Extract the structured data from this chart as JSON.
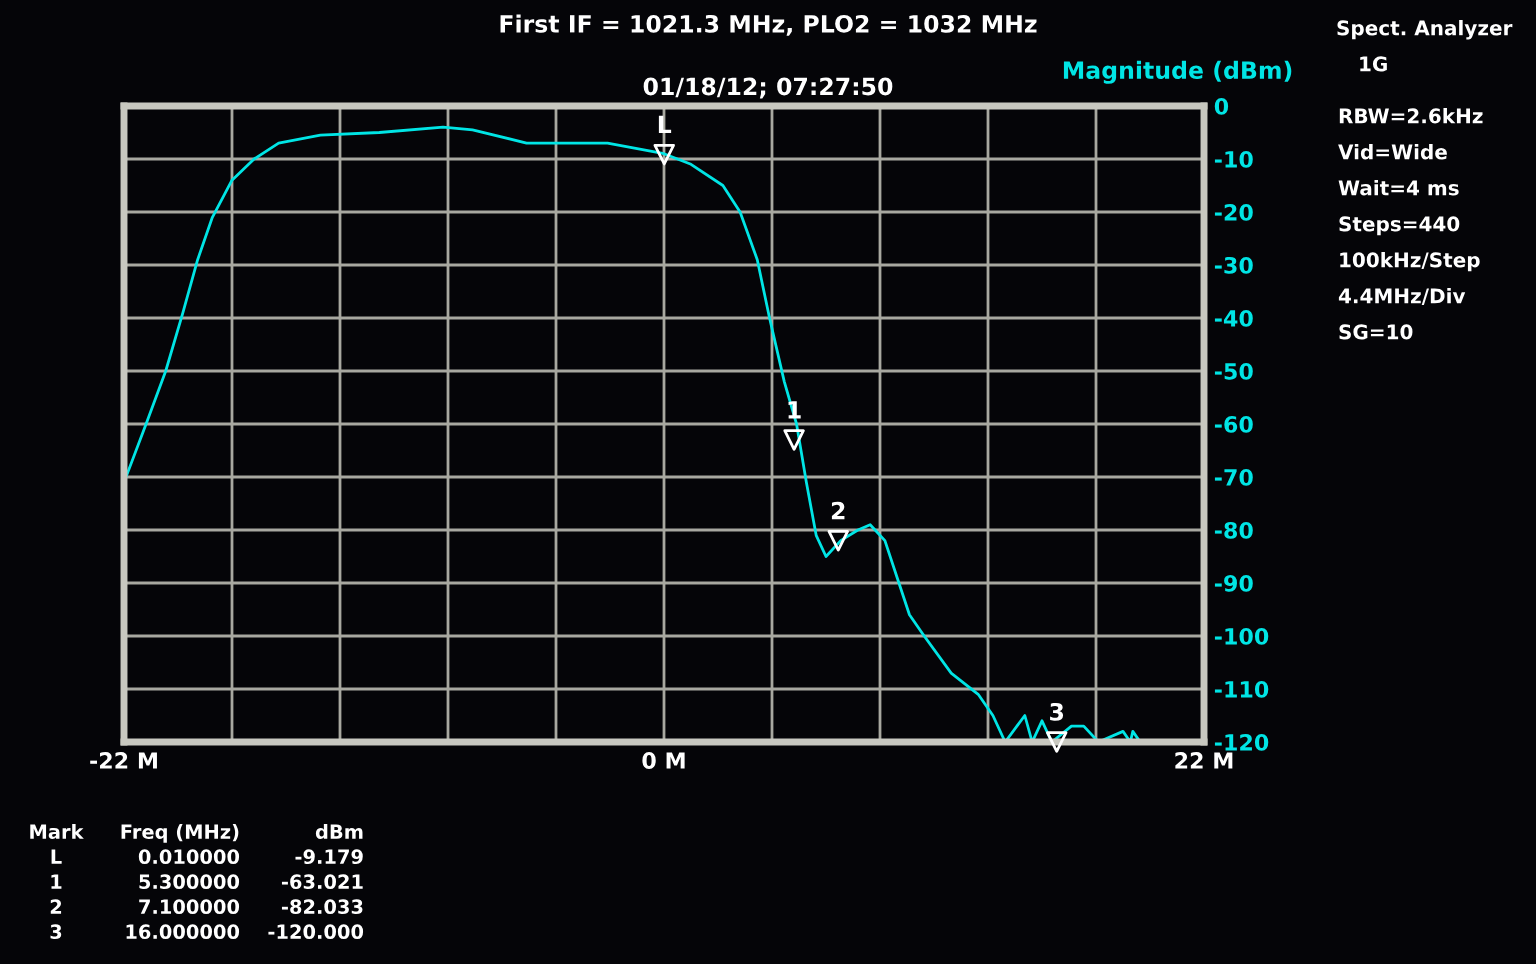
{
  "chart_data": {
    "type": "line",
    "title": "First IF = 1021.3 MHz, PLO2 = 1032 MHz",
    "subtitle": "01/18/12; 07:27:50",
    "ylabel": "Magnitude (dBm)",
    "xlim": [
      -22,
      22
    ],
    "ylim": [
      -120,
      0
    ],
    "xticks": [
      {
        "value": -22,
        "label": "-22 M"
      },
      {
        "value": -17.6,
        "label": null
      },
      {
        "value": -13.2,
        "label": null
      },
      {
        "value": -8.8,
        "label": null
      },
      {
        "value": -4.4,
        "label": null
      },
      {
        "value": 0,
        "label": "0 M"
      },
      {
        "value": 4.4,
        "label": null
      },
      {
        "value": 8.8,
        "label": null
      },
      {
        "value": 13.2,
        "label": null
      },
      {
        "value": 17.6,
        "label": null
      },
      {
        "value": 22,
        "label": "22 M"
      }
    ],
    "yticks": [
      0,
      -10,
      -20,
      -30,
      -40,
      -50,
      -60,
      -70,
      -80,
      -90,
      -100,
      -110,
      -120
    ],
    "grid": true,
    "marker": "none",
    "line_style": "solid",
    "series": [
      {
        "color": "#00e5e5",
        "x": [
          -22,
          -21.1,
          -20.3,
          -19.6,
          -19.0,
          -18.4,
          -17.6,
          -16.7,
          -15.7,
          -14.0,
          -11.6,
          -9.0,
          -7.8,
          -5.6,
          -2.3,
          0.0,
          1.1,
          2.4,
          3.1,
          3.8,
          4.3,
          4.9,
          5.4,
          5.8,
          6.2,
          6.6,
          7.2,
          7.9,
          8.4,
          9.0,
          9.5,
          10.0,
          10.6,
          11.7,
          12.8,
          13.4,
          13.9,
          14.7,
          15.0,
          15.4,
          15.8,
          16.6,
          17.1,
          17.7,
          18.7,
          19.0,
          19.1,
          19.4,
          22
        ],
        "values": [
          -71,
          -60,
          -50,
          -39,
          -29,
          -21,
          -14,
          -10,
          -7,
          -5.5,
          -5,
          -4,
          -4.5,
          -7,
          -7,
          -9,
          -11,
          -15,
          -20,
          -29,
          -40,
          -52,
          -60,
          -71,
          -81,
          -85,
          -82,
          -80,
          -79,
          -82,
          -89,
          -96,
          -100,
          -107,
          -111,
          -115,
          -120,
          -115,
          -120,
          -116,
          -120,
          -117,
          -117,
          -120,
          -118,
          -120,
          -118,
          -120,
          -120
        ]
      }
    ],
    "annotations": [
      {
        "text": "L",
        "x": 0.01,
        "y": -9.179
      },
      {
        "text": "1",
        "x": 5.3,
        "y": -63.021
      },
      {
        "text": "2",
        "x": 7.1,
        "y": -82.033
      },
      {
        "text": "3",
        "x": 16.0,
        "y": -120.0
      },
      "Spect. Analyzer",
      "1G",
      "RBW=2.6kHz",
      "Vid=Wide",
      "Wait=4 ms",
      "Steps=440",
      "100kHz/Step",
      "4.4MHz/Div",
      "SG=10",
      "Mark",
      "Freq (MHz)",
      "dBm",
      "L",
      "0.010000",
      "-9.179",
      "1",
      "5.300000",
      "-63.021",
      "2",
      "7.100000",
      "-82.033",
      "3",
      "16.000000",
      "-120.000"
    ]
  }
}
